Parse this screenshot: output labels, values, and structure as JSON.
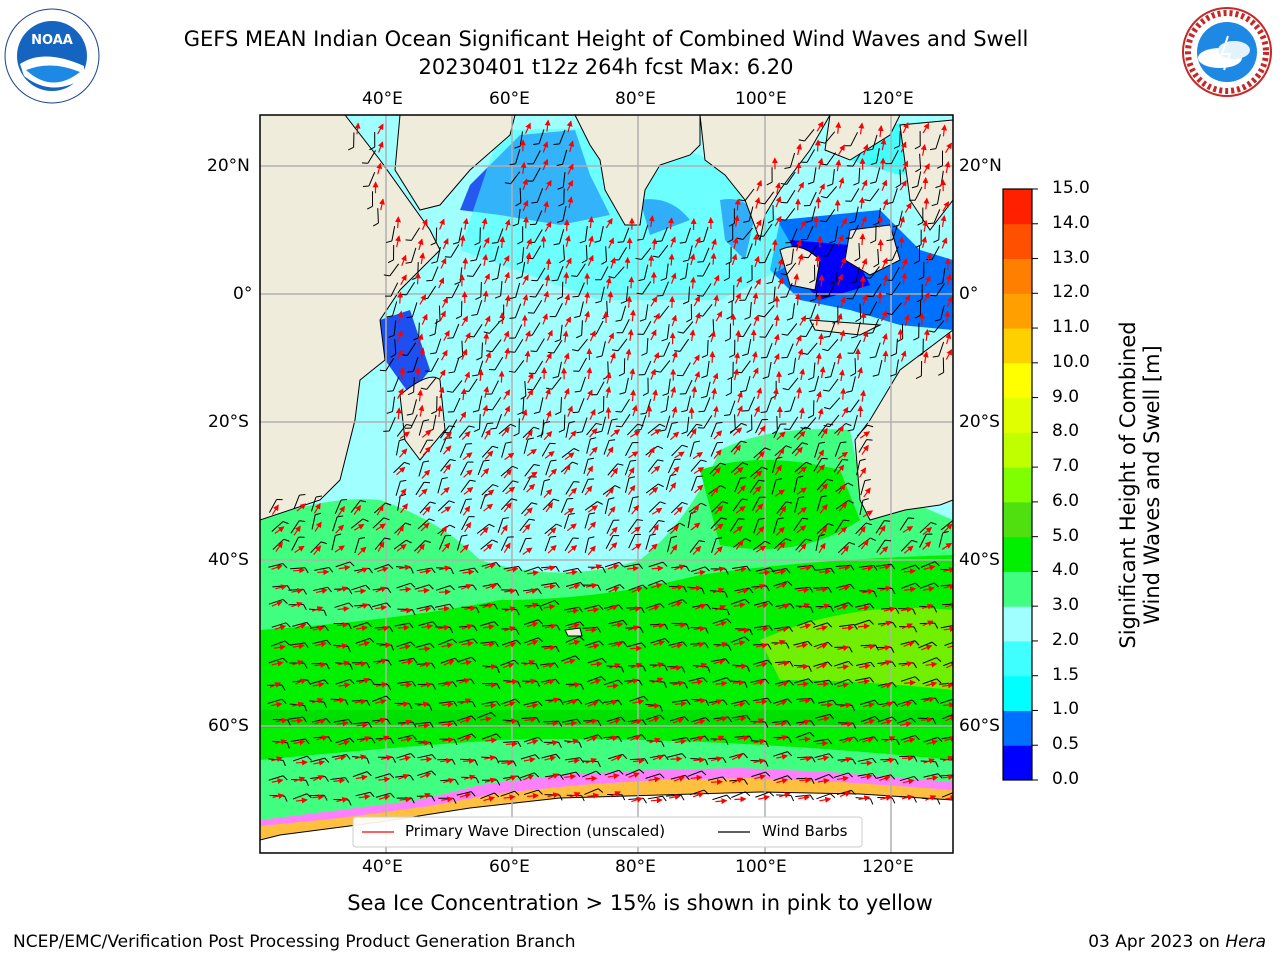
{
  "header": {
    "title_line1": "GEFS MEAN Indian Ocean Significant Height of Combined Wind Waves and Swell",
    "title_line2": "20230401 t12z 264h fcst   Max: 6.20"
  },
  "logos": {
    "noaa_text": "NOAA",
    "noaa_ring": "NATIONAL OCEANIC AND ATMOSPHERIC ADMINISTRATION · U.S. DEPARTMENT OF COMMERCE",
    "nws_ring": "NATIONAL WEATHER SERVICE"
  },
  "map": {
    "lon_labels": [
      "40°E",
      "60°E",
      "80°E",
      "100°E",
      "120°E"
    ],
    "lat_labels_left": [
      "20°N",
      "0°",
      "20°S",
      "40°S",
      "60°S"
    ],
    "lat_labels_right": [
      "20°N",
      "0°",
      "20°S",
      "40°S",
      "60°S"
    ],
    "legend": {
      "wave_direction": "Primary Wave Direction (unscaled)",
      "wind_barbs": "Wind Barbs"
    }
  },
  "colorbar": {
    "label_line1": "Significant Height of Combined",
    "label_line2": "Wind Waves and Swell [m]",
    "ticks": [
      "0.0",
      "0.5",
      "1.0",
      "1.5",
      "2.0",
      "3.0",
      "4.0",
      "5.0",
      "6.0",
      "7.0",
      "8.0",
      "9.0",
      "10.0",
      "11.0",
      "12.0",
      "13.0",
      "14.0",
      "15.0"
    ],
    "colors": [
      "#0000ff",
      "#0070ff",
      "#00ffff",
      "#40ffff",
      "#a0ffff",
      "#40ff80",
      "#00f000",
      "#50e010",
      "#80ff00",
      "#c0ff00",
      "#e0ff00",
      "#ffff00",
      "#ffd000",
      "#ffa000",
      "#ff8000",
      "#ff5000",
      "#ff2000",
      "#ff0000"
    ]
  },
  "footer": {
    "sea_ice_note": "Sea Ice Concentration > 15% is shown in pink to yellow",
    "branch": "NCEP/EMC/Verification Post Processing Product Generation Branch",
    "date": "03 Apr 2023 on ",
    "host": "Hera"
  }
}
